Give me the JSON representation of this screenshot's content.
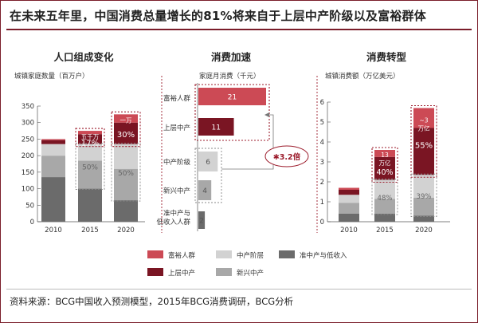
{
  "title": "在未来五年里，中国消费总量增长的81%将来自于上层中产阶级以及富裕群体",
  "source": "资料来源：BCG中国收入预测模型，2015年BCG消费调研，BCG分析",
  "colors": {
    "affluent": "#cc4a55",
    "upper_middle": "#7a1523",
    "mainstream_middle": "#d2d2d2",
    "emerging_middle": "#a8a8a8",
    "near_middle_low": "#6b6b6b",
    "accent": "#9c1c2c"
  },
  "legend": [
    {
      "key": "affluent",
      "label": "富裕人群"
    },
    {
      "key": "mainstream_middle",
      "label": "中产阶层"
    },
    {
      "key": "near_middle_low",
      "label": "准中产与低收入"
    },
    {
      "key": "upper_middle",
      "label": "上层中产"
    },
    {
      "key": "emerging_middle",
      "label": "新兴中产"
    }
  ],
  "chart_data": [
    {
      "type": "bar",
      "stacked": true,
      "title": "人口组成变化",
      "ylabel": "城镇家庭数量（百万户）",
      "ylim": [
        0,
        350
      ],
      "yticks": [
        0,
        50,
        100,
        150,
        200,
        250,
        300,
        350
      ],
      "categories": [
        "2010",
        "2015",
        "2020"
      ],
      "series": [
        {
          "name": "准中产与低收入",
          "key": "near_middle_low",
          "values": [
            135,
            100,
            65
          ]
        },
        {
          "name": "新兴中产",
          "key": "emerging_middle",
          "values": [
            65,
            85,
            95
          ]
        },
        {
          "name": "中产阶层",
          "key": "mainstream_middle",
          "values": [
            35,
            50,
            75
          ]
        },
        {
          "name": "上层中产",
          "key": "upper_middle",
          "values": [
            12,
            30,
            65
          ]
        },
        {
          "name": "富裕人群",
          "key": "affluent",
          "values": [
            3,
            10,
            25
          ]
        }
      ],
      "annotations": [
        {
          "text": "五千万",
          "category": "2015"
        },
        {
          "text": "17%",
          "category": "2015"
        },
        {
          "text": "50%",
          "category": "2015"
        },
        {
          "text": "一万",
          "category": "2020"
        },
        {
          "text": "30%",
          "category": "2020"
        },
        {
          "text": "50%",
          "category": "2020"
        }
      ]
    },
    {
      "type": "bar",
      "orientation": "horizontal",
      "title": "消费加速",
      "xlabel": "家庭月消费（千元）",
      "categories": [
        "富裕人群",
        "上层中产",
        "中产阶级",
        "新兴中产",
        "准中产与低收入人群"
      ],
      "keys": [
        "affluent",
        "upper_middle",
        "mainstream_middle",
        "emerging_middle",
        "near_middle_low"
      ],
      "values": [
        21,
        11,
        6,
        4,
        2
      ],
      "annotations": [
        {
          "text": "✱3.2倍"
        }
      ]
    },
    {
      "type": "bar",
      "stacked": true,
      "title": "消费转型",
      "ylabel": "城镇消费额（万亿美元）",
      "ylim": [
        0,
        6
      ],
      "yticks": [
        0,
        1,
        2,
        3,
        4,
        5,
        6
      ],
      "categories": [
        "2010",
        "2015",
        "2020"
      ],
      "series": [
        {
          "name": "准中产与低收入",
          "key": "near_middle_low",
          "values": [
            0.4,
            0.4,
            0.3
          ]
        },
        {
          "name": "新兴中产",
          "key": "emerging_middle",
          "values": [
            0.55,
            0.75,
            0.9
          ]
        },
        {
          "name": "中产阶层",
          "key": "mainstream_middle",
          "values": [
            0.4,
            0.95,
            1.15
          ]
        },
        {
          "name": "上层中产",
          "key": "upper_middle",
          "values": [
            0.25,
            1.15,
            2.35
          ]
        },
        {
          "name": "富裕人群",
          "key": "affluent",
          "values": [
            0.1,
            0.35,
            1.0
          ]
        }
      ],
      "annotations": [
        {
          "text": "13",
          "category": "2015"
        },
        {
          "text": "万亿",
          "category": "2015"
        },
        {
          "text": "40%",
          "category": "2015"
        },
        {
          "text": "48%",
          "category": "2015"
        },
        {
          "text": "~3",
          "category": "2020"
        },
        {
          "text": "万亿",
          "category": "2020"
        },
        {
          "text": "55%",
          "category": "2020"
        },
        {
          "text": "39%",
          "category": "2020"
        }
      ]
    }
  ]
}
